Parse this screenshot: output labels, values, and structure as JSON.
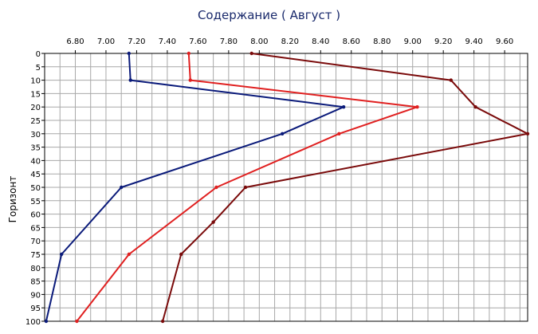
{
  "chart_data": {
    "type": "line",
    "title": "Содержание    ( Август )",
    "ylabel": "Горизонт",
    "xlabel": "",
    "xlim": [
      6.6,
      9.75
    ],
    "ylim": [
      0,
      100
    ],
    "y_inverted": true,
    "x_ticks": [
      "6.80",
      "7.00",
      "7.20",
      "7.40",
      "7.60",
      "7.80",
      "8.00",
      "8.20",
      "8.40",
      "8.60",
      "8.80",
      "9.00",
      "9.20",
      "9.40",
      "9.60"
    ],
    "x_tick_values": [
      6.8,
      7.0,
      7.2,
      7.4,
      7.6,
      7.8,
      8.0,
      8.2,
      8.4,
      8.6,
      8.8,
      9.0,
      9.2,
      9.4,
      9.6
    ],
    "y_ticks": [
      "0",
      "5",
      "10",
      "15",
      "20",
      "25",
      "30",
      "35",
      "40",
      "45",
      "50",
      "55",
      "60",
      "65",
      "70",
      "75",
      "80",
      "85",
      "90",
      "95",
      "100"
    ],
    "x_minor_step": 0.1,
    "grid": true,
    "series": [
      {
        "color": "#0a1a7a",
        "points": [
          [
            7.15,
            0
          ],
          [
            7.16,
            10
          ],
          [
            8.55,
            20
          ],
          [
            8.15,
            30
          ],
          [
            7.1,
            50
          ],
          [
            6.71,
            75
          ],
          [
            6.61,
            100
          ]
        ]
      },
      {
        "color": "#e02020",
        "points": [
          [
            7.54,
            0
          ],
          [
            7.55,
            10
          ],
          [
            9.03,
            20
          ],
          [
            8.52,
            30
          ],
          [
            7.72,
            50
          ],
          [
            7.15,
            75
          ],
          [
            6.81,
            100
          ]
        ]
      },
      {
        "color": "#7a0a0a",
        "points": [
          [
            7.95,
            0
          ],
          [
            9.25,
            10
          ],
          [
            9.41,
            20
          ],
          [
            9.75,
            30
          ],
          [
            7.91,
            50
          ],
          [
            7.7,
            63
          ],
          [
            7.49,
            75
          ],
          [
            7.37,
            100
          ]
        ]
      }
    ]
  }
}
